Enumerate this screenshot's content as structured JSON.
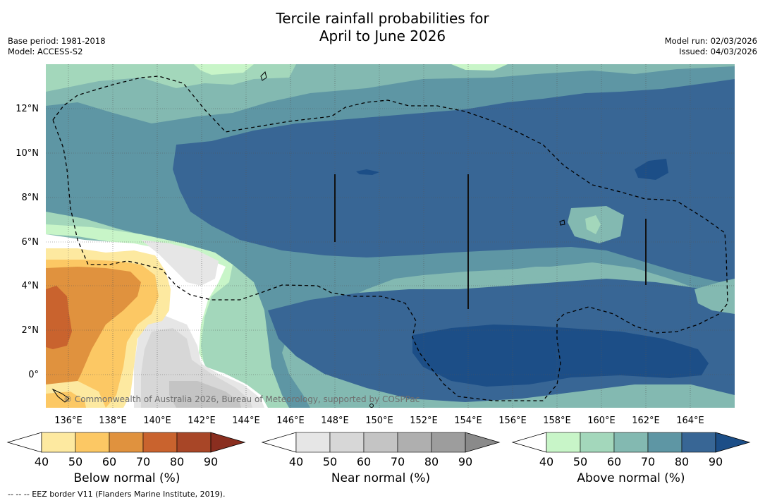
{
  "title": {
    "line1": "Tercile rainfall probabilities for",
    "line2": "April to June 2026"
  },
  "meta": {
    "base_period": "Base period: 1981-2018",
    "model": "Model: ACCESS-S2",
    "model_run": "Model run: 02/03/2026",
    "issued": "Issued: 04/03/2026"
  },
  "map": {
    "lat_labels": [
      "12°N",
      "10°N",
      "8°N",
      "6°N",
      "4°N",
      "2°N",
      "0°"
    ],
    "lon_labels": [
      "136°E",
      "138°E",
      "140°E",
      "142°E",
      "144°E",
      "146°E",
      "148°E",
      "150°E",
      "152°E",
      "154°E",
      "156°E",
      "158°E",
      "160°E",
      "162°E",
      "164°E"
    ],
    "copyright": "© Commonwealth of Australia 2026, Bureau of Meteorology, supported by COSPPac",
    "palette": {
      "below": [
        "#ffffff",
        "#fde9a0",
        "#fcc864",
        "#e0923e",
        "#c9632e",
        "#a84627",
        "#8a2e1f"
      ],
      "near": [
        "#ffffff",
        "#e6e6e6",
        "#d7d7d7",
        "#c4c4c4",
        "#afafaf",
        "#9d9d9d",
        "#8a8a8a"
      ],
      "above": [
        "#ffffff",
        "#c8f5c8",
        "#a3d7bb",
        "#83b9b1",
        "#5e96a4",
        "#386695",
        "#1c4e87"
      ]
    }
  },
  "colorbars": [
    {
      "label": "Below normal (%)",
      "ticks": [
        "40",
        "50",
        "60",
        "70",
        "80",
        "90"
      ]
    },
    {
      "label": "Near normal (%)",
      "ticks": [
        "40",
        "50",
        "60",
        "70",
        "80",
        "90"
      ]
    },
    {
      "label": "Above normal (%)",
      "ticks": [
        "40",
        "50",
        "60",
        "70",
        "80",
        "90"
      ]
    }
  ],
  "footer": "--  --  -- EEZ border V11 (Flanders Marine Institute, 2019)."
}
